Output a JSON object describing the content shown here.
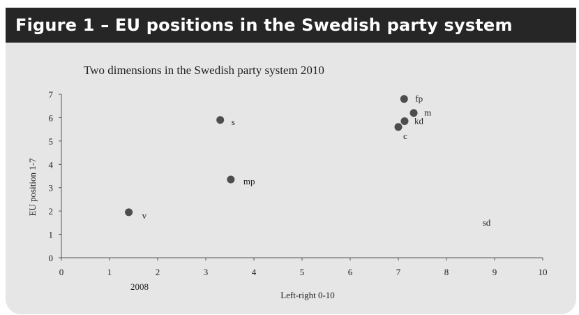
{
  "header": {
    "title": "Figure 1 – EU positions in the Swedish party system"
  },
  "colors": {
    "header_bg": "#262626",
    "panel_bg": "#e6e6e7",
    "marker": "#4d4d4d",
    "axis": "#555555"
  },
  "chart_data": {
    "type": "scatter",
    "title": "Two dimensions in the Swedish party system 2010",
    "xlabel": "Left-right 0-10",
    "ylabel": "EU position 1-7",
    "xlim": [
      0,
      10
    ],
    "ylim": [
      0,
      7
    ],
    "xticks": [
      "0",
      "1",
      "2",
      "3",
      "4",
      "5",
      "6",
      "7",
      "8",
      "9",
      "10"
    ],
    "yticks": [
      "0",
      "1",
      "2",
      "3",
      "4",
      "5",
      "6",
      "7"
    ],
    "grid": false,
    "annotation": "2008",
    "points": [
      {
        "label": "fp",
        "x": 7.12,
        "y": 6.8
      },
      {
        "label": "m",
        "x": 7.32,
        "y": 6.2
      },
      {
        "label": "kd",
        "x": 7.13,
        "y": 5.85
      },
      {
        "label": "c",
        "x": 7.0,
        "y": 5.6
      },
      {
        "label": "s",
        "x": 3.3,
        "y": 5.9
      },
      {
        "label": "mp",
        "x": 3.52,
        "y": 3.35
      },
      {
        "label": "v",
        "x": 1.4,
        "y": 1.95
      }
    ],
    "text_only_points": [
      {
        "label": "sd",
        "x": 8.75,
        "y": 1.5
      }
    ]
  }
}
